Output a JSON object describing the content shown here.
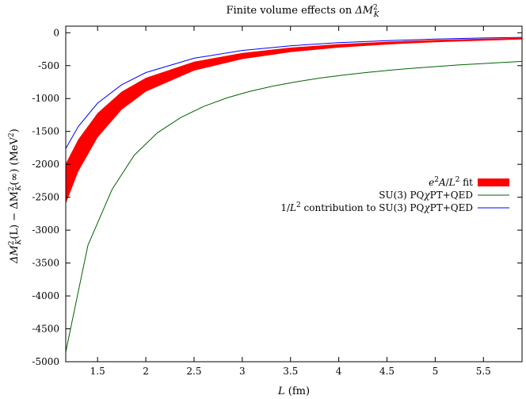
{
  "chart_data": {
    "type": "line",
    "title": "Finite volume effects on ΔM²_K",
    "xlabel": "L (fm)",
    "ylabel": "ΔM²_K(L) − ΔM²_K(∞) (MeV²)",
    "xlim": [
      1.17,
      5.9
    ],
    "ylim": [
      -5000,
      100
    ],
    "x_ticks": [
      "1.5",
      "2",
      "2.5",
      "3",
      "3.5",
      "4",
      "4.5",
      "5",
      "5.5"
    ],
    "y_ticks": [
      "0",
      "-500",
      "-1000",
      "-1500",
      "-2000",
      "-2500",
      "-3000",
      "-3500",
      "-4000",
      "-4500",
      "-5000"
    ],
    "legend_position": "right",
    "grid": false,
    "series": [
      {
        "name": "e²A/L² fit",
        "kind": "band",
        "color": "#ff0000",
        "x": [
          1.17,
          1.3,
          1.5,
          1.75,
          2.0,
          2.5,
          3.0,
          3.5,
          4.0,
          4.5,
          5.0,
          5.5,
          5.9
        ],
        "lower": [
          -2600,
          -2110,
          -1590,
          -1170,
          -895,
          -575,
          -400,
          -294,
          -225,
          -178,
          -144,
          -119,
          -103
        ],
        "upper": [
          -1990,
          -1620,
          -1220,
          -895,
          -685,
          -440,
          -306,
          -225,
          -172,
          -136,
          -110,
          -91,
          -79
        ]
      },
      {
        "name": "SU(3) PQχPT+QED",
        "kind": "line",
        "color": "#006400",
        "x": [
          1.17,
          1.4,
          1.65,
          1.88,
          2.12,
          2.36,
          2.6,
          2.84,
          3.08,
          3.32,
          3.56,
          3.8,
          4.04,
          4.28,
          4.52,
          4.76,
          5.0,
          5.24,
          5.48,
          5.72,
          5.9
        ],
        "y": [
          -4850,
          -3230,
          -2380,
          -1860,
          -1520,
          -1290,
          -1120,
          -990,
          -890,
          -810,
          -745,
          -690,
          -645,
          -605,
          -570,
          -540,
          -515,
          -490,
          -470,
          -450,
          -435
        ]
      },
      {
        "name": "1/L² contribution to SU(3) PQχPT+QED",
        "kind": "line",
        "color": "#0000ff",
        "x": [
          1.17,
          1.3,
          1.5,
          1.75,
          2.0,
          2.5,
          3.0,
          3.5,
          4.0,
          4.5,
          5.0,
          5.5,
          5.9
        ],
        "y": [
          -1760,
          -1425,
          -1070,
          -790,
          -605,
          -387,
          -269,
          -198,
          -151,
          -120,
          -97,
          -80,
          -70
        ]
      }
    ]
  },
  "title_parts": {
    "text": "Finite volume effects on ",
    "math_main": "ΔM",
    "math_sup": "2",
    "math_sub": "K"
  },
  "xlabel_parts": {
    "var": "L",
    "unit": " (fm)"
  },
  "ylabel_parts": {
    "p1": "ΔM",
    "s1": "2",
    "b1": "K",
    "p2": "(L) − ΔM",
    "s2": "2",
    "b2": "K",
    "p3": "(∞) (MeV",
    "s3": "2",
    "p4": ")"
  },
  "legend": [
    {
      "parts": [
        [
          "e",
          "i"
        ],
        [
          "2",
          "sup"
        ],
        [
          "A",
          "i"
        ],
        [
          "/",
          "n"
        ],
        [
          "L",
          "i"
        ],
        [
          "2",
          "sup"
        ],
        [
          " fit",
          "n"
        ]
      ],
      "color": "#ff0000",
      "style": "band"
    },
    {
      "parts": [
        [
          "SU(3) PQ",
          "n"
        ],
        [
          "χ",
          "i"
        ],
        [
          "PT+QED",
          "n"
        ]
      ],
      "color": "#006400",
      "style": "line"
    },
    {
      "parts": [
        [
          "1/",
          "n"
        ],
        [
          "L",
          "i"
        ],
        [
          "2",
          "sup"
        ],
        [
          " contribution to SU(3) PQ",
          "n"
        ],
        [
          "χ",
          "i"
        ],
        [
          "PT+QED",
          "n"
        ]
      ],
      "color": "#0000ff",
      "style": "line"
    }
  ]
}
